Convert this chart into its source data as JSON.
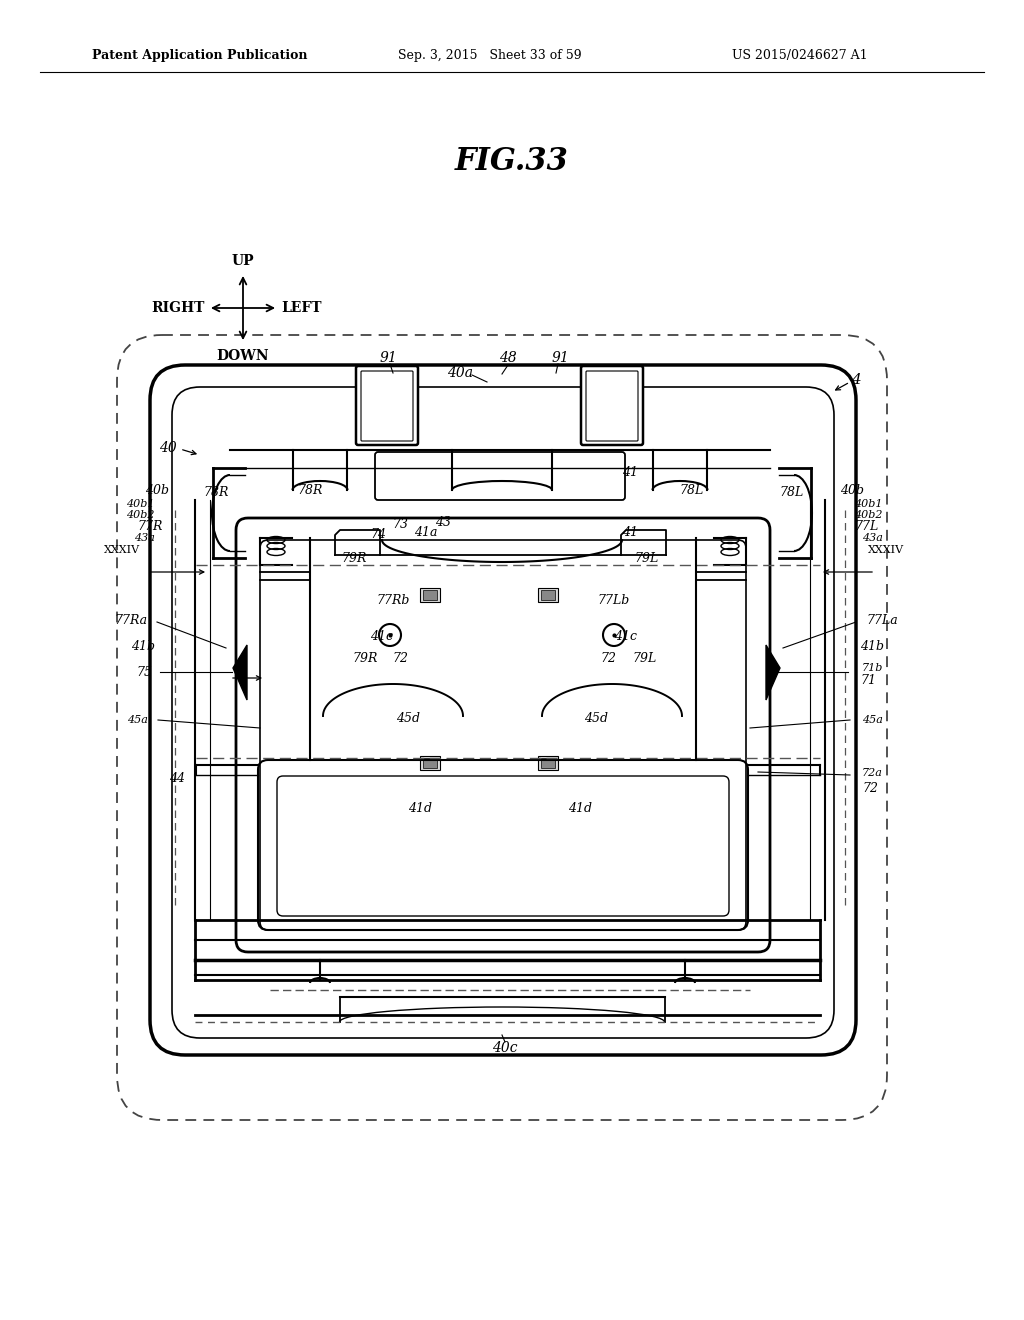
{
  "bg": "#ffffff",
  "lc": "#000000",
  "header_left": "Patent Application Publication",
  "header_mid": "Sep. 3, 2015   Sheet 33 of 59",
  "header_right": "US 2015/0246627 A1",
  "fig_title": "FIG.33"
}
